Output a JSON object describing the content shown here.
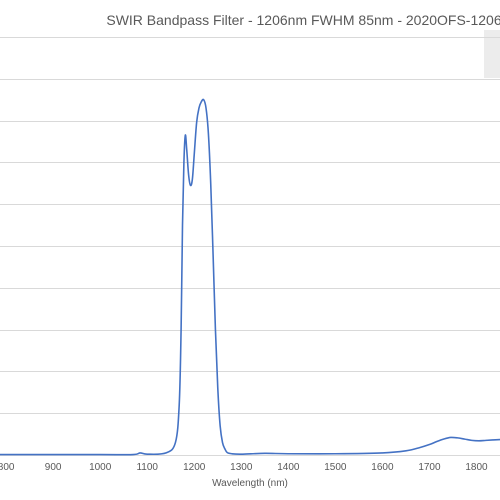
{
  "chart_data": {
    "type": "line",
    "title": "SWIR Bandpass Filter - 1206nm FWHM 85nm - 2020OFS-1206",
    "xlabel": "Wavelength (nm)",
    "ylabel": "",
    "xlim": [
      787,
      1850
    ],
    "ylim": [
      0,
      100
    ],
    "x_ticks": [
      800,
      900,
      1000,
      1100,
      1200,
      1300,
      1400,
      1500,
      1600,
      1700,
      1800
    ],
    "y_gridlines": [
      0,
      10,
      20,
      30,
      40,
      50,
      60,
      70,
      80,
      90,
      100
    ],
    "grid": true,
    "legend": "right (cropped)",
    "series": [
      {
        "color": "#4472c4",
        "x": [
          787,
          860,
          1000,
          1070,
          1085,
          1100,
          1140,
          1160,
          1168,
          1172,
          1175,
          1178,
          1181,
          1184,
          1188,
          1192,
          1196,
          1200,
          1205,
          1210,
          1215,
          1220,
          1225,
          1230,
          1235,
          1240,
          1245,
          1250,
          1255,
          1260,
          1265,
          1270,
          1280,
          1300,
          1350,
          1400,
          1500,
          1600,
          1650,
          1680,
          1700,
          1715,
          1730,
          1745,
          1760,
          1775,
          1790,
          1805,
          1820,
          1835,
          1850
        ],
        "y": [
          0.1,
          0.1,
          0.1,
          0.1,
          0.5,
          0.2,
          0.5,
          3,
          12,
          30,
          55,
          70,
          76.5,
          73,
          67,
          64.5,
          66,
          72,
          79.5,
          83,
          84.5,
          85,
          83,
          77,
          65,
          48,
          30,
          16,
          7,
          3,
          1.5,
          0.6,
          0.3,
          0.2,
          0.4,
          0.3,
          0.3,
          0.5,
          1,
          1.8,
          2.5,
          3.2,
          3.8,
          4.2,
          4.1,
          3.8,
          3.5,
          3.4,
          3.5,
          3.6,
          3.7
        ]
      }
    ]
  }
}
